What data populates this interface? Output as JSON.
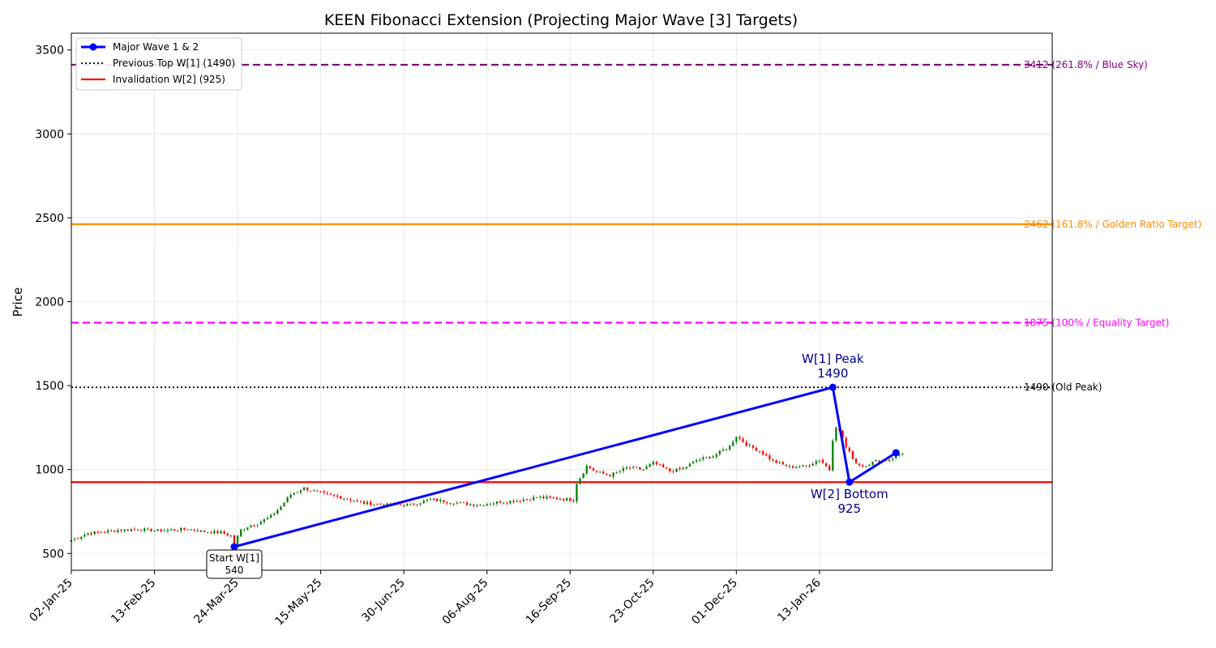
{
  "chart_data": {
    "type": "candlestick",
    "title": "KEEN Fibonacci Extension (Projecting Major Wave [3] Targets)",
    "ylabel": "Price",
    "xlabel": "",
    "ylim": [
      400,
      3600
    ],
    "x_range": [
      0,
      295
    ],
    "y_ticks": [
      500,
      1000,
      1500,
      2000,
      2500,
      3000,
      3500
    ],
    "x_ticks": [
      {
        "label": "02-Jan-25",
        "i": 0
      },
      {
        "label": "13-Feb-25",
        "i": 25
      },
      {
        "label": "24-Mar-25",
        "i": 50
      },
      {
        "label": "15-May-25",
        "i": 75
      },
      {
        "label": "30-Jun-25",
        "i": 100
      },
      {
        "label": "06-Aug-25",
        "i": 125
      },
      {
        "label": "16-Sep-25",
        "i": 150
      },
      {
        "label": "23-Oct-25",
        "i": 175
      },
      {
        "label": "01-Dec-25",
        "i": 200
      },
      {
        "label": "13-Jan-26",
        "i": 225
      }
    ],
    "close_anchors": [
      [
        0,
        580
      ],
      [
        5,
        620
      ],
      [
        10,
        630
      ],
      [
        15,
        640
      ],
      [
        20,
        645
      ],
      [
        25,
        635
      ],
      [
        30,
        640
      ],
      [
        35,
        645
      ],
      [
        40,
        630
      ],
      [
        45,
        625
      ],
      [
        48,
        605
      ],
      [
        49,
        560
      ],
      [
        51,
        640
      ],
      [
        53,
        660
      ],
      [
        56,
        680
      ],
      [
        60,
        720
      ],
      [
        63,
        780
      ],
      [
        66,
        850
      ],
      [
        70,
        890
      ],
      [
        73,
        870
      ],
      [
        77,
        850
      ],
      [
        82,
        830
      ],
      [
        88,
        800
      ],
      [
        95,
        790
      ],
      [
        102,
        790
      ],
      [
        108,
        820
      ],
      [
        113,
        810
      ],
      [
        118,
        795
      ],
      [
        123,
        790
      ],
      [
        128,
        805
      ],
      [
        134,
        815
      ],
      [
        140,
        835
      ],
      [
        147,
        825
      ],
      [
        151,
        820
      ],
      [
        152,
        920
      ],
      [
        155,
        1020
      ],
      [
        158,
        985
      ],
      [
        162,
        965
      ],
      [
        167,
        1010
      ],
      [
        172,
        1000
      ],
      [
        175,
        1040
      ],
      [
        180,
        990
      ],
      [
        184,
        1005
      ],
      [
        188,
        1055
      ],
      [
        193,
        1080
      ],
      [
        198,
        1140
      ],
      [
        200,
        1200
      ],
      [
        203,
        1150
      ],
      [
        207,
        1110
      ],
      [
        211,
        1050
      ],
      [
        216,
        1015
      ],
      [
        221,
        1020
      ],
      [
        225,
        1060
      ],
      [
        228,
        1000
      ],
      [
        229,
        1180
      ],
      [
        230,
        1260
      ],
      [
        232,
        1190
      ],
      [
        233,
        1130
      ],
      [
        236,
        1040
      ],
      [
        238,
        1020
      ],
      [
        242,
        1050
      ],
      [
        246,
        1060
      ],
      [
        250,
        1100
      ]
    ],
    "wave_points": [
      {
        "i": 49,
        "price": 540
      },
      {
        "i": 229,
        "price": 1490
      },
      {
        "i": 234,
        "price": 925
      },
      {
        "i": 248,
        "price": 1100
      }
    ],
    "levels": [
      {
        "name": "blue-sky-level",
        "value": 3412,
        "label": "3412 (261.8% / Blue Sky)",
        "color": "#800080",
        "style": "dashed"
      },
      {
        "name": "golden-ratio-level",
        "value": 2462,
        "label": "2462 (161.8% / Golden Ratio Target)",
        "color": "#ff8c00",
        "style": "solid"
      },
      {
        "name": "equality-level",
        "value": 1875,
        "label": "1875 (100% / Equality Target)",
        "color": "#ff00ff",
        "style": "dashed"
      },
      {
        "name": "old-peak-level",
        "value": 1490,
        "label": "1490 (Old Peak)",
        "color": "#000000",
        "style": "dotted"
      },
      {
        "name": "invalidation-level",
        "value": 925,
        "label": "",
        "color": "#ff0000",
        "style": "solid"
      }
    ],
    "annotations": [
      {
        "name": "w1-peak-label",
        "line1": "W[1] Peak",
        "line2": "1490",
        "i": 229,
        "price": 1490,
        "pos": "above"
      },
      {
        "name": "w2-bottom-label",
        "line1": "W[2] Bottom",
        "line2": "925",
        "i": 234,
        "price": 925,
        "pos": "below"
      },
      {
        "name": "start-w1-label",
        "line1": "Start W[1]",
        "line2": "540",
        "i": 49,
        "price": 540,
        "pos": "boxed-below"
      }
    ],
    "legend": [
      {
        "label": "Major Wave 1 & 2",
        "style": "line-marker",
        "color": "#0000ff"
      },
      {
        "label": "Previous Top W[1] (1490)",
        "style": "dotted",
        "color": "#000000"
      },
      {
        "label": "Invalidation W[2] (925)",
        "style": "solid",
        "color": "#ff0000"
      }
    ],
    "legend_position": "upper-left",
    "grid": true,
    "colors": {
      "up": "#008000",
      "down": "#ff0000",
      "wave": "#0000ff",
      "annotation": "#00008b"
    }
  }
}
